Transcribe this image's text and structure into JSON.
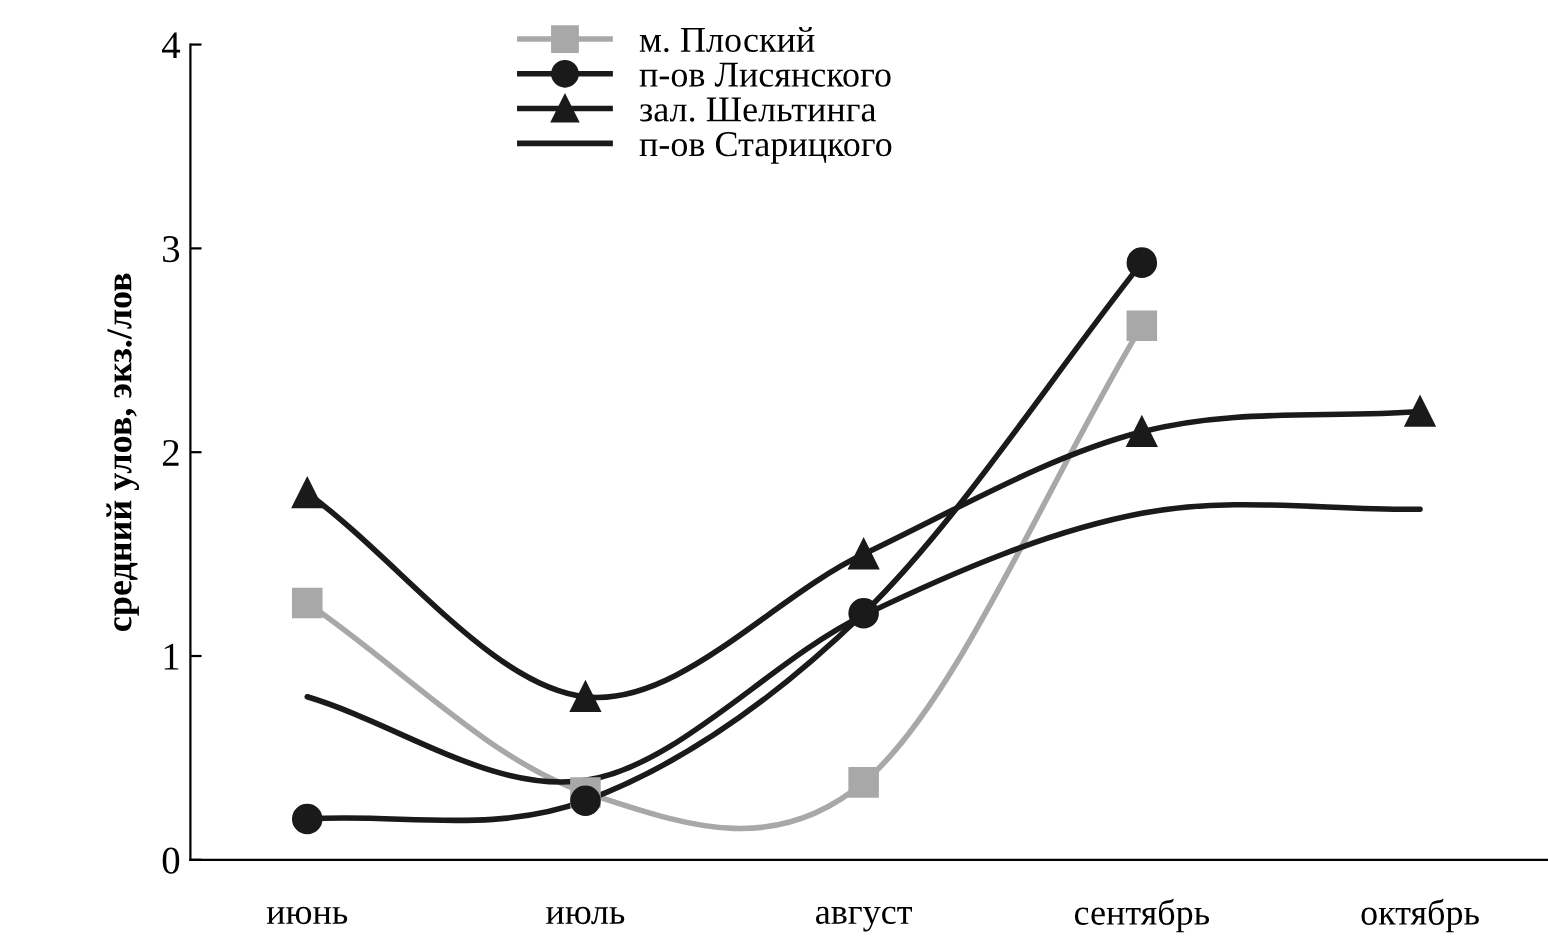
{
  "chart_data": {
    "type": "line",
    "ylabel": "средний улов, экз./лов",
    "categories": [
      "июнь",
      "июль",
      "август",
      "сентябрь",
      "октябрь"
    ],
    "series": [
      {
        "name": "м. Плоский",
        "color": "#a8a8a8",
        "marker": "square",
        "values": [
          1.26,
          0.33,
          0.38,
          2.62,
          null
        ]
      },
      {
        "name": "п-ов Лисянского",
        "color": "#1a1a1a",
        "marker": "circle",
        "values": [
          0.2,
          0.29,
          1.21,
          2.93,
          null
        ]
      },
      {
        "name": "зал. Шельтинга",
        "color": "#1a1a1a",
        "marker": "triangle",
        "values": [
          1.8,
          0.8,
          1.5,
          2.1,
          2.2
        ]
      },
      {
        "name": "п-ов Старицкого",
        "color": "#1a1a1a",
        "marker": "none",
        "values": [
          0.8,
          0.39,
          1.2,
          1.7,
          1.72
        ]
      }
    ],
    "ylim": [
      0,
      4
    ],
    "yticks": [
      0,
      1,
      2,
      3,
      4
    ],
    "grid": false,
    "legend": "top",
    "line_style": "solid"
  }
}
